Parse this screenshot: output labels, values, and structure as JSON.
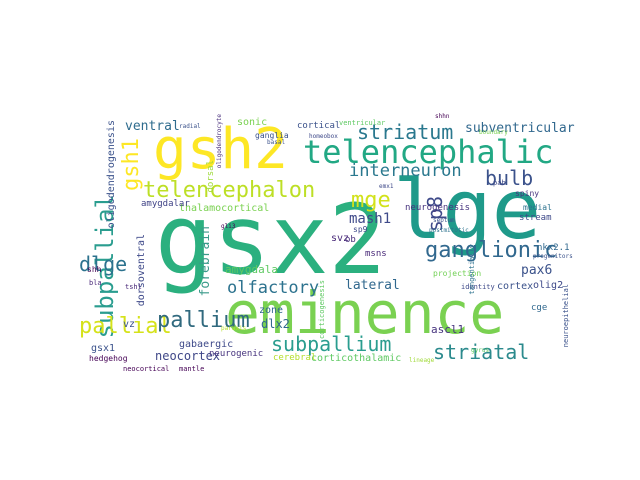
{
  "wordcloud": {
    "words": [
      {
        "text": "gsx2",
        "color": "#2bb07f"
      },
      {
        "text": "lge",
        "color": "#1f9a8a"
      },
      {
        "text": "eminence",
        "color": "#7ad151"
      },
      {
        "text": "gsh2",
        "color": "#fde725"
      },
      {
        "text": "telencephalic",
        "color": "#22a884"
      },
      {
        "text": "telencephalon",
        "color": "#bddf26"
      },
      {
        "text": "striatum",
        "color": "#2a788e"
      },
      {
        "text": "interneuron",
        "color": "#2a788e"
      },
      {
        "text": "bulb",
        "color": "#3b528b"
      },
      {
        "text": "mge",
        "color": "#d2e21b"
      },
      {
        "text": "subpallial",
        "color": "#2a9d8f"
      },
      {
        "text": "gsh1",
        "color": "#fde725"
      },
      {
        "text": "ganglionic",
        "color": "#31688e"
      },
      {
        "text": "dlge",
        "color": "#2c728e"
      },
      {
        "text": "pallial",
        "color": "#d5e21a"
      },
      {
        "text": "pallium",
        "color": "#30697e"
      },
      {
        "text": "subpallium",
        "color": "#2a9d8f"
      },
      {
        "text": "striatal",
        "color": "#2b8a8d"
      },
      {
        "text": "olfactory",
        "color": "#2c728e"
      },
      {
        "text": "sp8",
        "color": "#3e4989"
      },
      {
        "text": "mash1",
        "color": "#3e4989"
      },
      {
        "text": "pax6",
        "color": "#3b528b"
      },
      {
        "text": "lateral",
        "color": "#31688e"
      },
      {
        "text": "ventral",
        "color": "#2f6c8e"
      },
      {
        "text": "forebrain",
        "color": "#3a9a8a"
      },
      {
        "text": "subventricular",
        "color": "#31688e"
      },
      {
        "text": "neocortex",
        "color": "#3f4788"
      },
      {
        "text": "dlx2",
        "color": "#31688e"
      },
      {
        "text": "gabaergic",
        "color": "#3e4989"
      },
      {
        "text": "amygdala",
        "color": "#5ec962"
      },
      {
        "text": "thalamocortical",
        "color": "#7ad151"
      },
      {
        "text": "neurogenesis",
        "color": "#46337e"
      },
      {
        "text": "oligodendrogenesis",
        "color": "#3b528b"
      },
      {
        "text": "sonic",
        "color": "#7ad151"
      },
      {
        "text": "cortical",
        "color": "#3b528b"
      },
      {
        "text": "dorsoventral",
        "color": "#3e4989"
      },
      {
        "text": "amygdalar",
        "color": "#414487"
      },
      {
        "text": "ventricular",
        "color": "#5ec962"
      },
      {
        "text": "gsx1",
        "color": "#3b528b"
      },
      {
        "text": "hedgehog",
        "color": "#440154"
      },
      {
        "text": "corticothalamic",
        "color": "#5ec962"
      },
      {
        "text": "cerebral",
        "color": "#b5de2b"
      },
      {
        "text": "neurogenic",
        "color": "#46337e"
      },
      {
        "text": "zone",
        "color": "#31688e"
      },
      {
        "text": "vz",
        "color": "#3b528b"
      },
      {
        "text": "ascl1",
        "color": "#46337e"
      },
      {
        "text": "cortex",
        "color": "#3b528b"
      },
      {
        "text": "olig2",
        "color": "#3e4989"
      },
      {
        "text": "svz",
        "color": "#482878"
      },
      {
        "text": "msns",
        "color": "#482878"
      },
      {
        "text": "ob",
        "color": "#472d7b"
      },
      {
        "text": "sp9",
        "color": "#3e4989"
      },
      {
        "text": "dorsal",
        "color": "#9fda3a"
      },
      {
        "text": "ganglia",
        "color": "#3b528b"
      },
      {
        "text": "spiny",
        "color": "#46337e"
      },
      {
        "text": "stream",
        "color": "#3e4989"
      },
      {
        "text": "medial",
        "color": "#2c728e"
      },
      {
        "text": "nkx2.1",
        "color": "#31688e"
      },
      {
        "text": "projection",
        "color": "#73d056"
      },
      {
        "text": "identity",
        "color": "#3e4989"
      },
      {
        "text": "cge",
        "color": "#31688e"
      },
      {
        "text": "shh",
        "color": "#440154"
      },
      {
        "text": "bla",
        "color": "#482878"
      },
      {
        "text": "neocortical",
        "color": "#440154"
      },
      {
        "text": "mantle",
        "color": "#440154"
      },
      {
        "text": "radial",
        "color": "#3b528b"
      },
      {
        "text": "basal",
        "color": "#3b528b"
      },
      {
        "text": "tshl",
        "color": "#482878"
      },
      {
        "text": "boundary",
        "color": "#7ad151"
      },
      {
        "text": "homeobox",
        "color": "#3e4989"
      },
      {
        "text": "shhn",
        "color": "#440154"
      },
      {
        "text": "progenitors",
        "color": "#3b528b"
      },
      {
        "text": "septum",
        "color": "#3b528b"
      },
      {
        "text": "postmitotic",
        "color": "#2c728e"
      },
      {
        "text": "tangentially",
        "color": "#2c728e"
      },
      {
        "text": "neuroepithelial",
        "color": "#3b528b"
      },
      {
        "text": "corticogenesis",
        "color": "#5ec962"
      },
      {
        "text": "pab",
        "color": "#3e4989"
      },
      {
        "text": "emx1",
        "color": "#3e4989"
      },
      {
        "text": "gli3",
        "color": "#440154"
      },
      {
        "text": "oligodendrocyte",
        "color": "#472d7b"
      },
      {
        "text": "lineage",
        "color": "#a0da39"
      },
      {
        "text": "gyrus",
        "color": "#5ec962"
      },
      {
        "text": "paraxis",
        "color": "#b5de2b"
      }
    ]
  }
}
